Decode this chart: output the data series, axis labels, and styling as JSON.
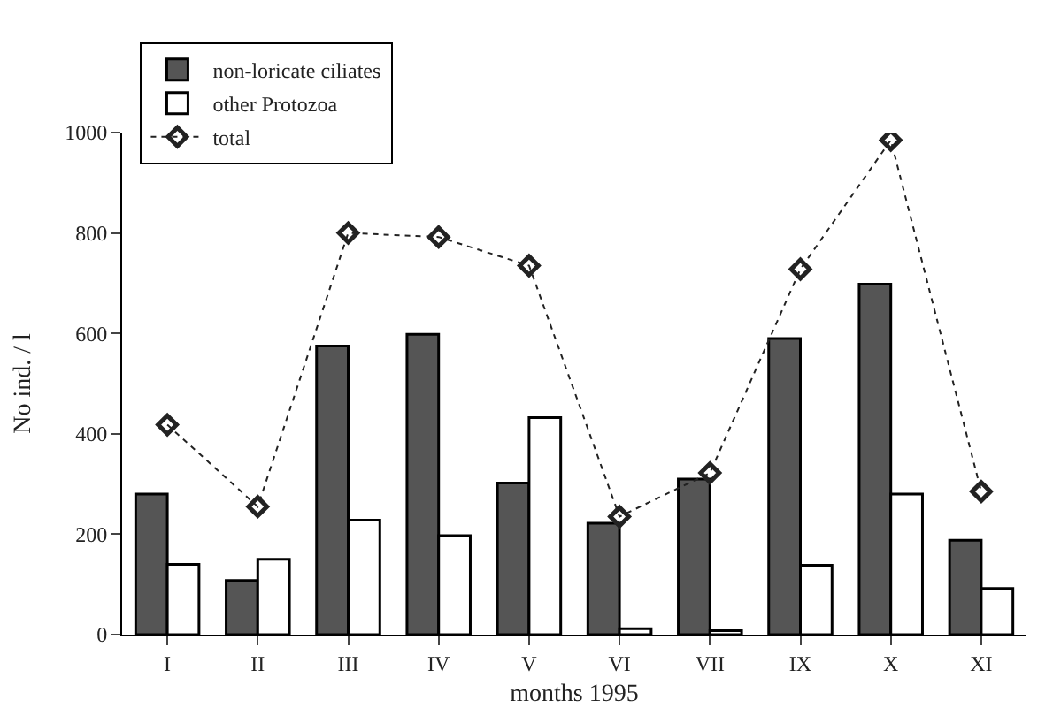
{
  "chart_data": {
    "type": "bar",
    "xlabel": "months 1995",
    "ylabel": "No ind. / l",
    "categories": [
      "I",
      "II",
      "III",
      "IV",
      "V",
      "VI",
      "VII",
      "IX",
      "X",
      "XI"
    ],
    "series": [
      {
        "name": "non-loricate ciliates",
        "color": "#555555",
        "values": [
          280,
          108,
          575,
          598,
          302,
          222,
          310,
          590,
          698,
          188
        ]
      },
      {
        "name": "other Protozoa",
        "color": "#ffffff",
        "values": [
          140,
          150,
          228,
          197,
          432,
          12,
          8,
          138,
          280,
          92
        ]
      },
      {
        "name": "total",
        "type": "line",
        "color": "#222222",
        "marker": "diamond",
        "line_style": "dotted",
        "values": [
          418,
          255,
          800,
          792,
          735,
          235,
          322,
          728,
          985,
          285
        ]
      }
    ],
    "ylim": [
      0,
      1000
    ],
    "yticks": [
      0,
      200,
      400,
      600,
      800,
      1000
    ],
    "grid": false,
    "legend": "top left"
  }
}
